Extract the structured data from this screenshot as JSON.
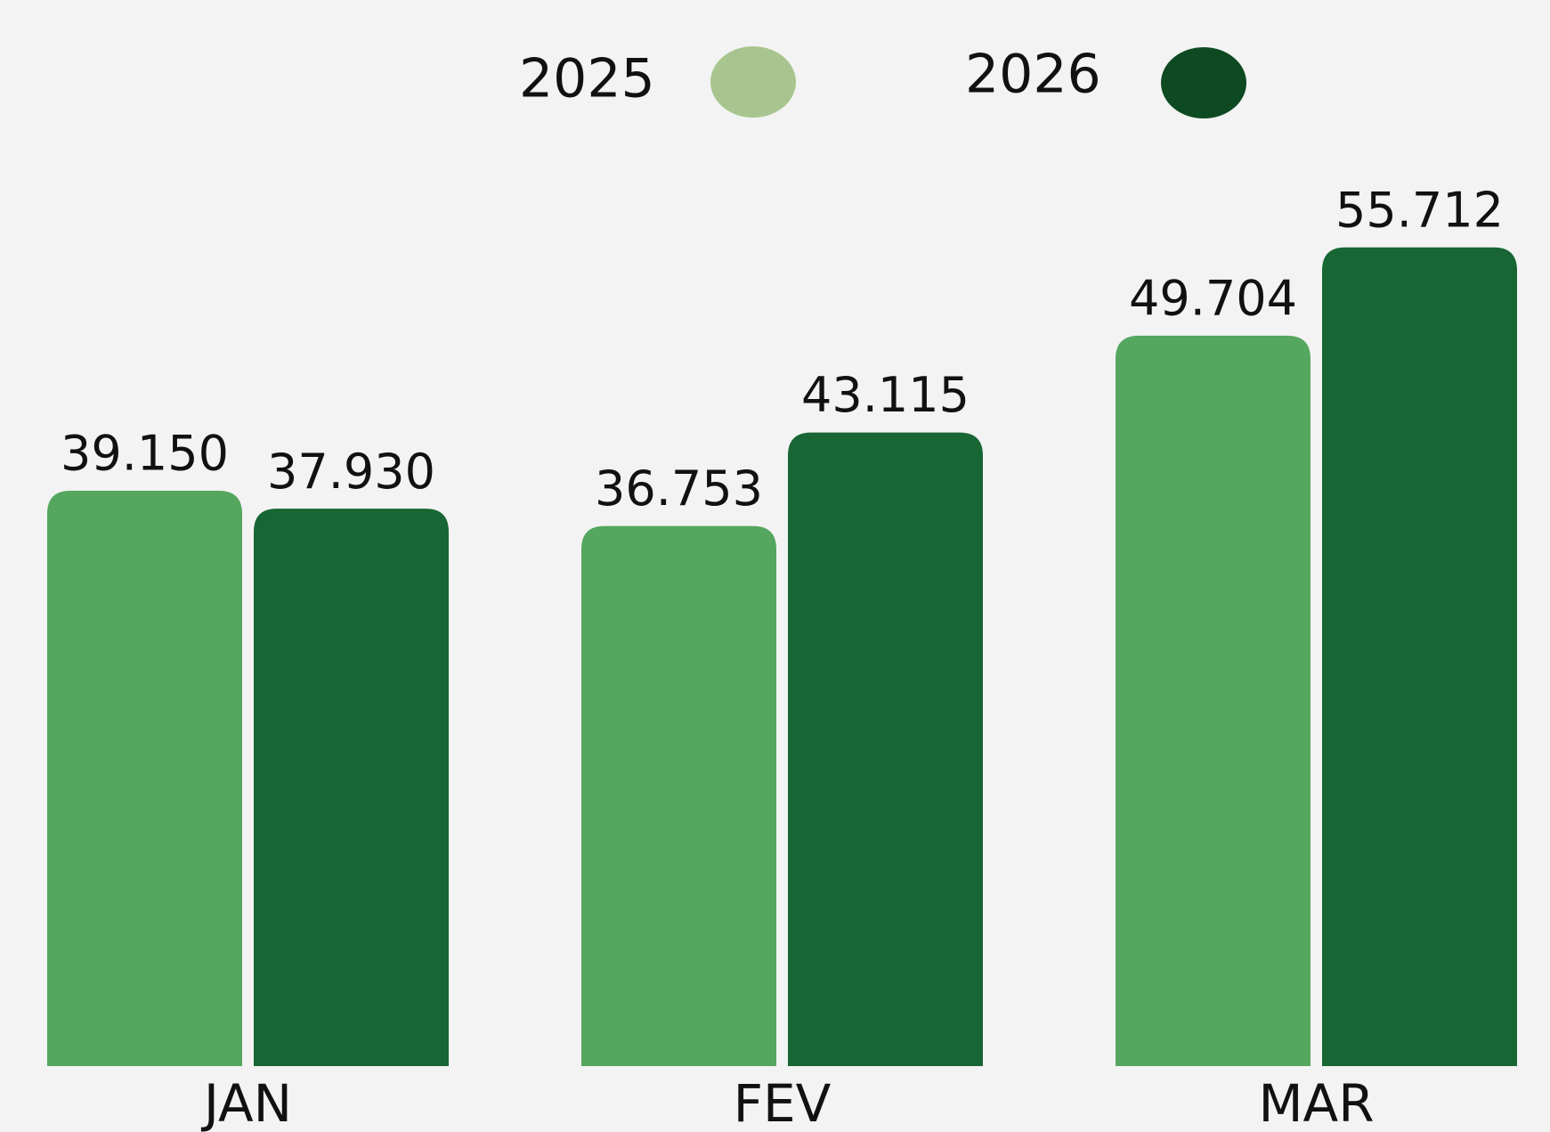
{
  "chart_data": {
    "type": "bar",
    "categories": [
      "JAN",
      "FEV",
      "MAR"
    ],
    "series": [
      {
        "name": "2025",
        "color": "#55a65e",
        "legend_color": "#a8c58f",
        "values": [
          39150,
          36753,
          49704
        ],
        "value_labels": [
          "39.150",
          "36.753",
          "49.704"
        ]
      },
      {
        "name": "2026",
        "color": "#176634",
        "legend_color": "#0d4a22",
        "values": [
          37930,
          43115,
          55712
        ],
        "value_labels": [
          "37.930",
          "43.115",
          "55.712"
        ]
      }
    ]
  }
}
